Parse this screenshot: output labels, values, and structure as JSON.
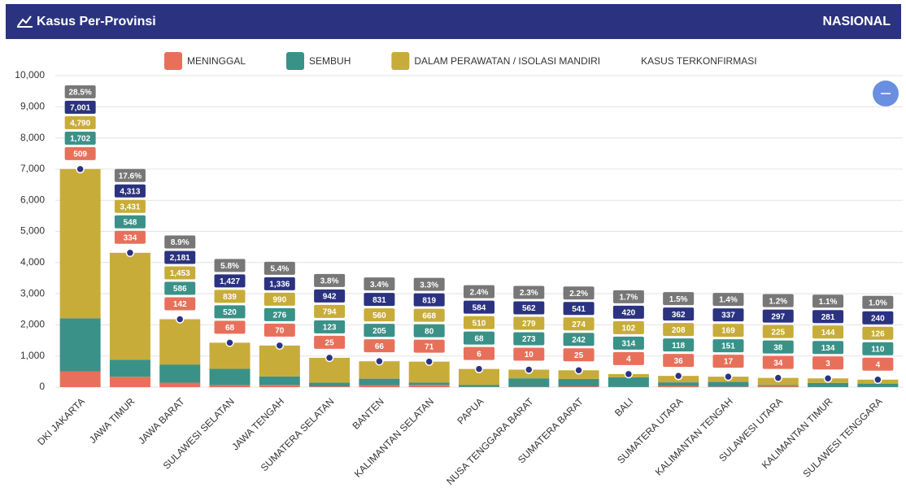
{
  "header": {
    "title": "Kasus Per-Provinsi",
    "scope": "NASIONAL"
  },
  "chart_data": {
    "type": "bar",
    "stacked": true,
    "grid": true,
    "categories": [
      "DKI JAKARTA",
      "JAWA TIMUR",
      "JAWA BARAT",
      "SULAWESI SELATAN",
      "JAWA TENGAH",
      "SUMATERA SELATAN",
      "BANTEN",
      "KALIMANTAN SELATAN",
      "PAPUA",
      "NUSA TENGGARA BARAT",
      "SUMATERA BARAT",
      "BALI",
      "SUMATERA UTARA",
      "KALIMANTAN TENGAH",
      "SULAWESI UTARA",
      "KALIMANTAN TIMUR",
      "SULAWESI TENGGARA"
    ],
    "ylim": [
      0,
      10000
    ],
    "yticks": [
      0,
      {
        "value": 1000,
        "label": "1,000"
      },
      {
        "value": 2000,
        "label": "2,000"
      },
      {
        "value": 3000,
        "label": "3,000"
      },
      {
        "value": 4000,
        "label": "4,000"
      },
      {
        "value": 5000,
        "label": "5,000"
      },
      {
        "value": 6000,
        "label": "6,000"
      },
      {
        "value": 7000,
        "label": "7,000"
      },
      {
        "value": 8000,
        "label": "8,000"
      },
      {
        "value": 9000,
        "label": "9,000"
      },
      {
        "value": 10000,
        "label": "10,000"
      }
    ],
    "series": [
      {
        "name": "MENINGGAL",
        "type": "bar",
        "color": "#e8705a",
        "values": [
          509,
          334,
          142,
          68,
          70,
          25,
          66,
          71,
          6,
          10,
          25,
          4,
          36,
          17,
          34,
          3,
          4
        ]
      },
      {
        "name": "SEMBUH",
        "type": "bar",
        "color": "#3a9188",
        "values": [
          1702,
          548,
          586,
          520,
          276,
          123,
          205,
          80,
          68,
          273,
          242,
          314,
          118,
          151,
          38,
          134,
          110
        ],
        "value_labels": [
          "1,702",
          "548",
          "586",
          "520",
          "276",
          "123",
          "205",
          "80",
          "68",
          "273",
          "242",
          "314",
          "118",
          "151",
          "38",
          "134",
          "110"
        ]
      },
      {
        "name": "DALAM PERAWATAN / ISOLASI MANDIRI",
        "type": "bar",
        "color": "#c8ac3a",
        "values": [
          4790,
          3431,
          1453,
          839,
          990,
          794,
          560,
          668,
          510,
          279,
          274,
          102,
          208,
          169,
          225,
          144,
          126
        ],
        "value_labels": [
          "4,790",
          "3,431",
          "1,453",
          "839",
          "990",
          "794",
          "560",
          "668",
          "510",
          "279",
          "274",
          "102",
          "208",
          "169",
          "225",
          "144",
          "126"
        ]
      },
      {
        "name": "KASUS TERKONFIRMASI",
        "type": "scatter",
        "color": "#2b3380",
        "values": [
          7001,
          4313,
          2181,
          1427,
          1336,
          942,
          831,
          819,
          584,
          562,
          541,
          420,
          362,
          337,
          297,
          281,
          240
        ],
        "value_labels": [
          "7,001",
          "4,313",
          "2,181",
          "1,427",
          "1,336",
          "942",
          "831",
          "819",
          "584",
          "562",
          "541",
          "420",
          "362",
          "337",
          "297",
          "281",
          "240"
        ]
      }
    ],
    "share": {
      "color": "#777777",
      "values": [
        28.5,
        17.6,
        8.9,
        5.8,
        5.4,
        3.8,
        3.4,
        3.3,
        2.4,
        2.3,
        2.2,
        1.7,
        1.5,
        1.4,
        1.2,
        1.1,
        1.0
      ],
      "value_labels": [
        "28.5%",
        "17.6%",
        "8.9%",
        "5.8%",
        "5.4%",
        "3.8%",
        "3.4%",
        "3.3%",
        "2.4%",
        "2.3%",
        "2.2%",
        "1.7%",
        "1.5%",
        "1.4%",
        "1.2%",
        "1.1%",
        "1.0%"
      ]
    }
  }
}
